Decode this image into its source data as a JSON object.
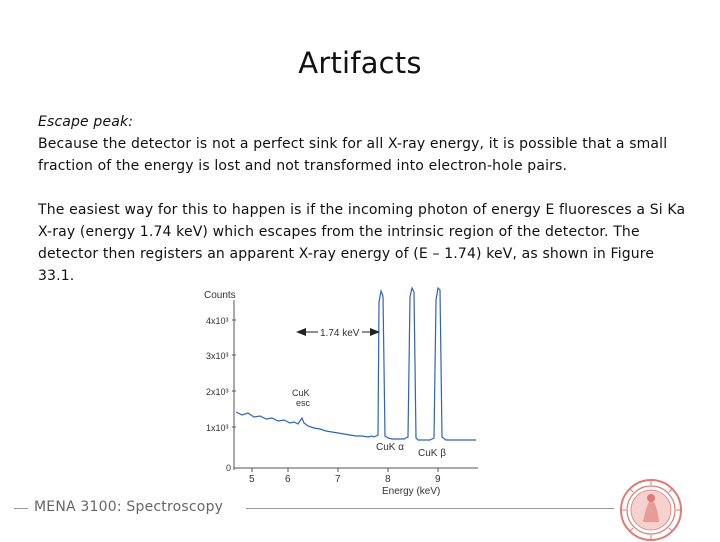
{
  "slide": {
    "title": "Artifacts",
    "subheading": "Escape peak:",
    "paragraph1": "Because the detector is not a perfect sink for all X-ray energy, it is possible that a small fraction of the energy is lost and not transformed into electron-hole pairs.",
    "paragraph2": "The easiest way for this to happen is if the incoming photon of energy E fluoresces a Si Ka X-ray (energy 1.74 keV) which escapes from the intrinsic region of the detector. The detector then registers an apparent X-ray energy of (E – 1.74) keV, as shown in Figure 33.1."
  },
  "figure": {
    "y_axis_title": "Counts",
    "x_axis_title": "Energy (keV)",
    "x_ticks": [
      "5",
      "6",
      "7",
      "8",
      "9"
    ],
    "y_ticks": [
      "0",
      "1x10³",
      "2x10³",
      "3x10³",
      "4x10³"
    ],
    "arrow_label": "1.74 keV",
    "peak_labels": {
      "escape_line1": "CuK",
      "escape_line2": "esc",
      "cuka": "CuK α",
      "cukb": "CuK β"
    },
    "line_color": "#2f63b6"
  },
  "footer": {
    "text": "MENA 3100: Spectroscopy"
  },
  "logo": {
    "icon": "university-seal-icon",
    "color": "#d9534f"
  }
}
